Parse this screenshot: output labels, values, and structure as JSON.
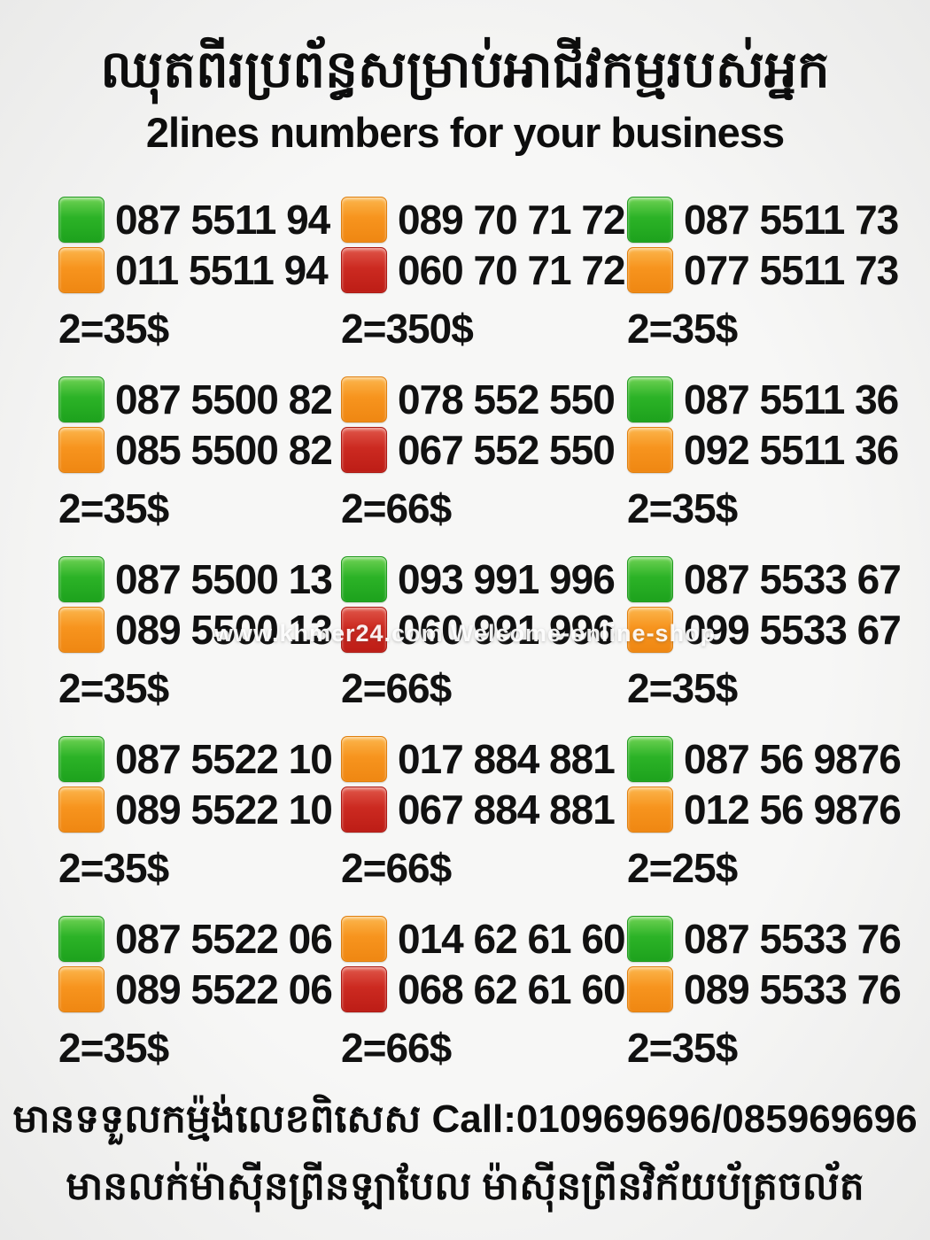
{
  "page": {
    "title_khmer": "ឈុតពីរប្រព័ន្ធសម្រាប់អាជីវកម្មរបស់អ្នក",
    "title_english": "2lines numbers for your business"
  },
  "colors": {
    "green": "#2cb327",
    "orange": "#f7941e",
    "red": "#cc2a21",
    "background": "#f4f4f3",
    "text": "#111111"
  },
  "watermark": "www.khmer24.com Welcome-online-shop",
  "offers": [
    {
      "lines": [
        {
          "color": "green",
          "number": "087 5511 94"
        },
        {
          "color": "orange",
          "number": "011 5511 94"
        }
      ],
      "price": "2=35$"
    },
    {
      "lines": [
        {
          "color": "orange",
          "number": "089 70 71 72"
        },
        {
          "color": "red",
          "number": "060 70 71 72"
        }
      ],
      "price": "2=350$"
    },
    {
      "lines": [
        {
          "color": "green",
          "number": "087 5511 73"
        },
        {
          "color": "orange",
          "number": "077 5511 73"
        }
      ],
      "price": "2=35$"
    },
    {
      "lines": [
        {
          "color": "green",
          "number": "087 5500 82"
        },
        {
          "color": "orange",
          "number": "085 5500 82"
        }
      ],
      "price": "2=35$"
    },
    {
      "lines": [
        {
          "color": "orange",
          "number": "078 552 550"
        },
        {
          "color": "red",
          "number": "067 552 550"
        }
      ],
      "price": "2=66$"
    },
    {
      "lines": [
        {
          "color": "green",
          "number": "087 5511 36"
        },
        {
          "color": "orange",
          "number": "092 5511 36"
        }
      ],
      "price": "2=35$"
    },
    {
      "lines": [
        {
          "color": "green",
          "number": "087 5500 13"
        },
        {
          "color": "orange",
          "number": "089 5500 13"
        }
      ],
      "price": "2=35$"
    },
    {
      "lines": [
        {
          "color": "green",
          "number": "093 991 996"
        },
        {
          "color": "red",
          "number": "060 991 996"
        }
      ],
      "price": "2=66$"
    },
    {
      "lines": [
        {
          "color": "green",
          "number": "087 5533 67"
        },
        {
          "color": "orange",
          "number": "099 5533 67"
        }
      ],
      "price": "2=35$"
    },
    {
      "lines": [
        {
          "color": "green",
          "number": "087 5522 10"
        },
        {
          "color": "orange",
          "number": "089 5522 10"
        }
      ],
      "price": "2=35$"
    },
    {
      "lines": [
        {
          "color": "orange",
          "number": "017 884 881"
        },
        {
          "color": "red",
          "number": "067 884 881"
        }
      ],
      "price": "2=66$"
    },
    {
      "lines": [
        {
          "color": "green",
          "number": "087 56 9876"
        },
        {
          "color": "orange",
          "number": "012 56 9876"
        }
      ],
      "price": "2=25$"
    },
    {
      "lines": [
        {
          "color": "green",
          "number": "087 5522 06"
        },
        {
          "color": "orange",
          "number": "089 5522 06"
        }
      ],
      "price": "2=35$"
    },
    {
      "lines": [
        {
          "color": "orange",
          "number": "014 62 61 60"
        },
        {
          "color": "red",
          "number": "068 62 61 60"
        }
      ],
      "price": "2=66$"
    },
    {
      "lines": [
        {
          "color": "green",
          "number": "087 5533 76"
        },
        {
          "color": "orange",
          "number": "089 5533 76"
        }
      ],
      "price": "2=35$"
    }
  ],
  "footer": {
    "line1": "មានទទួលកម្ម៉ង់លេខពិសេស Call:010969696/085969696",
    "line2": "មានលក់ម៉ាស៊ីនព្រីនឡាបែល ម៉ាស៊ីនព្រីនវិក័យប័ត្រចល័ត"
  }
}
